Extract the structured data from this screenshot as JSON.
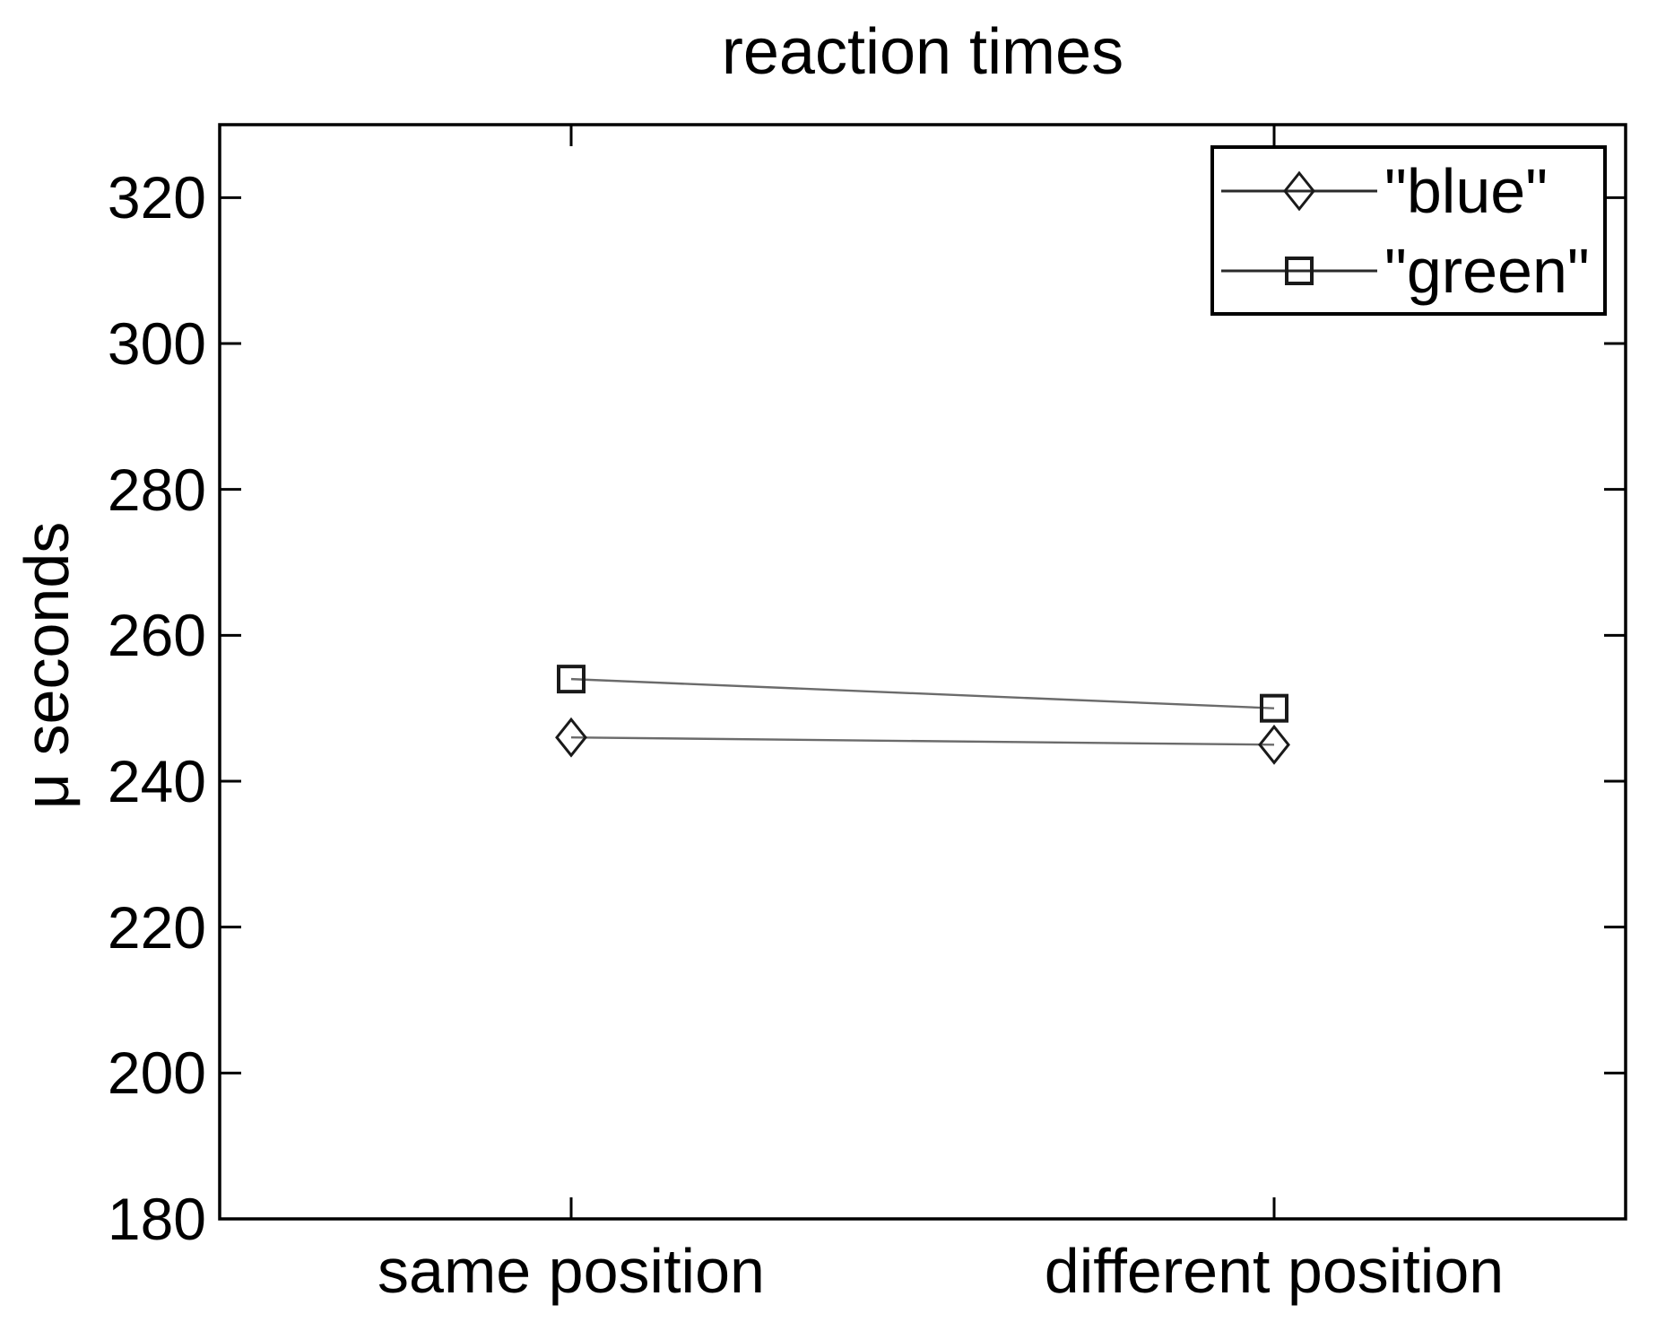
{
  "figure": {
    "background_color": "#ffffff",
    "axis_color": "#000000",
    "text_color": "#000000",
    "series_line_color": "#6b6b6b",
    "marker_color": "#1a1a1a"
  },
  "chart_data": {
    "type": "line",
    "title": "reaction times",
    "xlabel": "",
    "ylabel": "μ seconds",
    "categories": [
      "same position",
      "different position"
    ],
    "series": [
      {
        "name": "\"blue\"",
        "marker": "diamond",
        "values": [
          246,
          245
        ]
      },
      {
        "name": "\"green\"",
        "marker": "square",
        "values": [
          254,
          250
        ]
      }
    ],
    "ylim": [
      180,
      330
    ],
    "yticks": [
      180,
      200,
      220,
      240,
      260,
      280,
      300,
      320
    ],
    "grid": false,
    "legend_position": "top-right",
    "marker_fill": "none",
    "box": true
  }
}
